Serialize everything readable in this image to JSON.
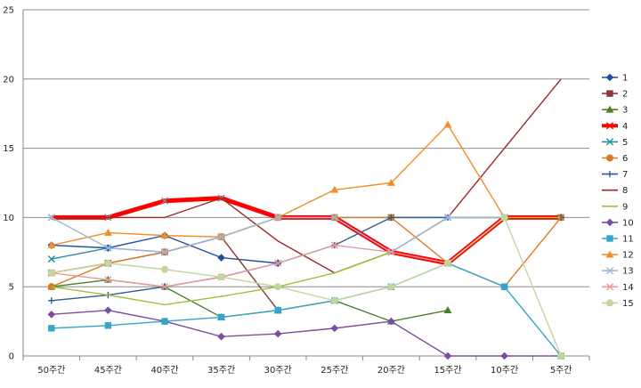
{
  "chart_data": {
    "type": "line",
    "title": "",
    "xlabel": "",
    "ylabel": "",
    "ylim": [
      0,
      25
    ],
    "yticks": [
      0,
      5,
      10,
      15,
      20,
      25
    ],
    "grid": "horizontal",
    "legend_position": "right",
    "categories": [
      "50주간",
      "45주간",
      "40주간",
      "35주간",
      "30주간",
      "25주간",
      "20주간",
      "15주간",
      "10주간",
      "5주간"
    ],
    "series": [
      {
        "name": "1",
        "color": "#1f4e9b",
        "marker": "diamond",
        "values": [
          8,
          7.8,
          8.7,
          7.1,
          6.7,
          null,
          null,
          null,
          null,
          null
        ]
      },
      {
        "name": "2",
        "color": "#8b3a3a",
        "marker": "square",
        "values": [
          6,
          6.7,
          7.5,
          8.6,
          3.3,
          null,
          null,
          null,
          null,
          null
        ]
      },
      {
        "name": "3",
        "color": "#4b7f2a",
        "marker": "triangle",
        "values": [
          5,
          5.5,
          5,
          2.8,
          3.3,
          4,
          2.5,
          3.3,
          null,
          null
        ]
      },
      {
        "name": "4",
        "color": "#ff0000",
        "marker": "x",
        "values": [
          10,
          10,
          11.2,
          11.4,
          10,
          10,
          7.5,
          6.7,
          10,
          10
        ],
        "width": 5
      },
      {
        "name": "5",
        "color": "#2a8aa8",
        "marker": "x",
        "values": [
          7,
          7.8,
          7.5,
          8.6,
          10,
          10,
          10,
          10,
          10,
          null
        ]
      },
      {
        "name": "6",
        "color": "#d97a2b",
        "marker": "circle",
        "values": [
          5,
          6.7,
          7.5,
          8.6,
          10,
          10,
          10,
          6.7,
          5,
          10
        ]
      },
      {
        "name": "7",
        "color": "#2e5e8f",
        "marker": "plus",
        "values": [
          4,
          4.4,
          5,
          5.7,
          6.7,
          8,
          10,
          10,
          10,
          10
        ]
      },
      {
        "name": "8",
        "color": "#9a2a2a",
        "marker": "none",
        "values": [
          10,
          10,
          10,
          11.4,
          8.3,
          6,
          7.5,
          10,
          15,
          20
        ]
      },
      {
        "name": "9",
        "color": "#9dc13a",
        "marker": "none",
        "values": [
          5,
          4.4,
          3.7,
          4.3,
          5,
          6,
          7.5,
          10,
          10,
          10
        ]
      },
      {
        "name": "10",
        "color": "#7b4ea0",
        "marker": "diamond",
        "values": [
          3,
          3.3,
          2.5,
          1.4,
          1.6,
          2,
          2.5,
          0,
          0,
          0
        ]
      },
      {
        "name": "11",
        "color": "#35a6c8",
        "marker": "square",
        "values": [
          2,
          2.2,
          2.5,
          2.8,
          3.3,
          4,
          5,
          6.7,
          5,
          0
        ]
      },
      {
        "name": "12",
        "color": "#f28e2b",
        "marker": "triangle",
        "values": [
          8,
          8.9,
          8.7,
          8.6,
          10,
          12,
          12.5,
          16.7,
          10,
          null
        ]
      },
      {
        "name": "13",
        "color": "#9fb6d8",
        "marker": "x",
        "values": [
          10,
          7.8,
          7.5,
          8.6,
          10,
          10,
          7.5,
          10,
          10,
          null
        ]
      },
      {
        "name": "14",
        "color": "#e69a9a",
        "marker": "x",
        "values": [
          6,
          5.5,
          5,
          5.7,
          6.7,
          8,
          7.5,
          6.7,
          10,
          null
        ]
      },
      {
        "name": "15",
        "color": "#c3d69b",
        "marker": "circle",
        "values": [
          6,
          6.7,
          6.25,
          5.7,
          5,
          4,
          5,
          6.7,
          10,
          0
        ]
      }
    ]
  }
}
